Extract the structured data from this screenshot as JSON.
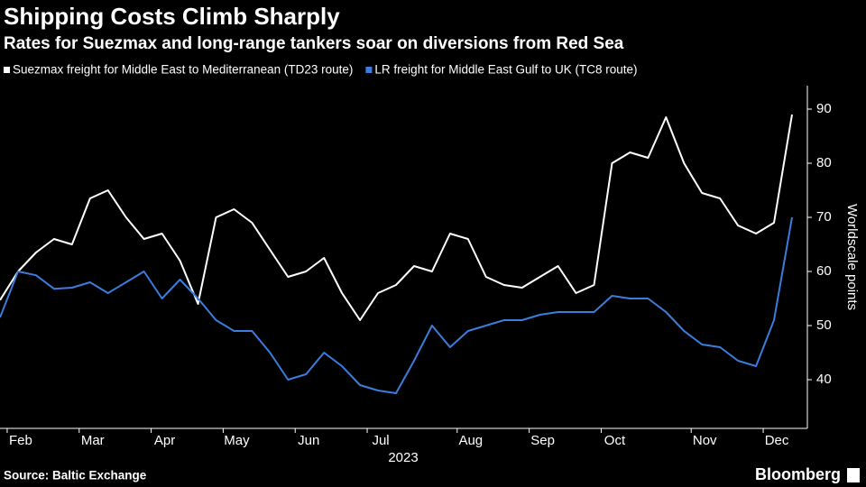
{
  "chart_data": {
    "type": "line",
    "title": "Shipping Costs Climb Sharply",
    "subtitle": "Rates for Suezmax and long-range tankers soar on diversions from Red Sea",
    "ylabel": "Worldscale points",
    "year": "2023",
    "source": "Source: Baltic Exchange",
    "brand": "Bloomberg",
    "categories": [
      null,
      "Feb",
      null,
      null,
      null,
      "Mar",
      null,
      null,
      null,
      "Apr",
      null,
      null,
      null,
      "May",
      null,
      null,
      null,
      "Jun",
      null,
      null,
      null,
      "Jul",
      null,
      null,
      null,
      null,
      "Aug",
      null,
      null,
      null,
      "Sep",
      null,
      null,
      null,
      "Oct",
      null,
      null,
      null,
      null,
      "Nov",
      null,
      null,
      null,
      "Dec",
      null
    ],
    "series": [
      {
        "name": "Suezmax freight for Middle East to Mediterranean (TD23 route)",
        "color": "#ffffff",
        "values": [
          54.7,
          60,
          63.5,
          66,
          65,
          73.5,
          75,
          70,
          66,
          67,
          62,
          54,
          70,
          71.5,
          69,
          64,
          59,
          60,
          62.5,
          56,
          51,
          56,
          57.5,
          61,
          60,
          67,
          66,
          59,
          57.5,
          57,
          59,
          61,
          56,
          57.5,
          80,
          82,
          81,
          88.5,
          80,
          74.5,
          73.5,
          68.5,
          67,
          69,
          89
        ]
      },
      {
        "name": "LR freight for Middle East Gulf to UK (TC8 route)",
        "color": "#3b7ddd",
        "values": [
          51.5,
          60,
          59.3,
          56.8,
          57,
          58,
          56,
          58,
          60,
          55,
          58.5,
          55,
          51,
          49,
          49,
          45,
          40,
          41,
          45,
          42.5,
          39,
          38,
          37.5,
          43.5,
          50,
          46,
          49,
          50,
          51,
          51,
          52,
          52.5,
          52.5,
          52.5,
          55.5,
          55,
          55,
          52.5,
          49,
          46.5,
          46,
          43.5,
          42.5,
          51,
          70
        ]
      }
    ],
    "ylim": [
      32,
      94
    ],
    "yticks": [
      40,
      50,
      60,
      70,
      80,
      90
    ]
  }
}
